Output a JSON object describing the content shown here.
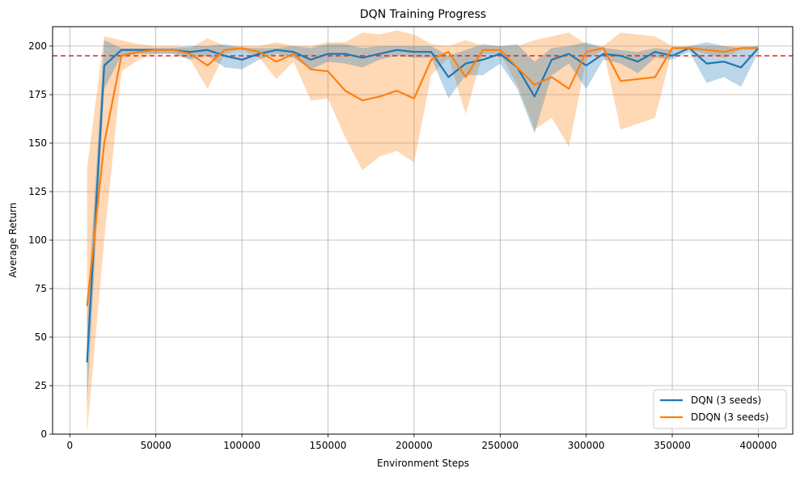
{
  "chart_data": {
    "type": "line",
    "title": "DQN Training Progress",
    "xlabel": "Environment Steps",
    "ylabel": "Average Return",
    "xlim": [
      -10000,
      420000
    ],
    "ylim": [
      0,
      210
    ],
    "xticks": [
      0,
      50000,
      100000,
      150000,
      200000,
      250000,
      300000,
      350000,
      400000
    ],
    "xtick_labels": [
      "0",
      "50000",
      "100000",
      "150000",
      "200000",
      "250000",
      "300000",
      "350000",
      "400000"
    ],
    "yticks": [
      0,
      25,
      50,
      75,
      100,
      125,
      150,
      175,
      200
    ],
    "ytick_labels": [
      "0",
      "25",
      "50",
      "75",
      "100",
      "125",
      "150",
      "175",
      "200"
    ],
    "grid": true,
    "legend_position": "lower-right",
    "reference_line": {
      "y": 195,
      "color": "#d62728",
      "style": "dashed"
    },
    "x": [
      10000,
      20000,
      30000,
      40000,
      50000,
      60000,
      70000,
      80000,
      90000,
      100000,
      110000,
      120000,
      130000,
      140000,
      150000,
      160000,
      170000,
      180000,
      190000,
      200000,
      210000,
      220000,
      230000,
      240000,
      250000,
      260000,
      270000,
      280000,
      290000,
      300000,
      310000,
      320000,
      330000,
      340000,
      350000,
      360000,
      370000,
      380000,
      390000,
      400000
    ],
    "series": [
      {
        "name": "DQN (3 seeds)",
        "color": "#1f77b4",
        "values": [
          37,
          190,
          198,
          198,
          198,
          198,
          197,
          198,
          195,
          193,
          196,
          198,
          197,
          193,
          196,
          196,
          194,
          196,
          198,
          197,
          197,
          184,
          191,
          193,
          196,
          189,
          174,
          193,
          196,
          190,
          196,
          195,
          192,
          197,
          195,
          199,
          191,
          192,
          189,
          199
        ],
        "upper": [
          60,
          203,
          199,
          199,
          199,
          199,
          200,
          200,
          201,
          199,
          199,
          199,
          200,
          199,
          201,
          201,
          199,
          200,
          200,
          200,
          200,
          195,
          198,
          201,
          200,
          201,
          192,
          199,
          200,
          202,
          199,
          198,
          197,
          199,
          198,
          200,
          202,
          200,
          199,
          200
        ],
        "lower": [
          15,
          178,
          195,
          196,
          196,
          196,
          193,
          195,
          189,
          188,
          193,
          196,
          194,
          188,
          192,
          191,
          189,
          193,
          195,
          194,
          194,
          173,
          185,
          185,
          191,
          178,
          155,
          185,
          191,
          178,
          193,
          191,
          186,
          194,
          193,
          197,
          181,
          184,
          179,
          197
        ]
      },
      {
        "name": "DDQN (3 seeds)",
        "color": "#ff7f0e",
        "values": [
          66,
          150,
          195,
          197,
          198,
          198,
          196,
          190,
          198,
          199,
          197,
          192,
          196,
          188,
          187,
          177,
          172,
          174,
          177,
          173,
          193,
          197,
          184,
          198,
          198,
          189,
          180,
          184,
          178,
          197,
          199,
          182,
          183,
          184,
          199,
          199,
          198,
          197,
          199,
          199
        ],
        "upper": [
          137,
          205,
          203,
          201,
          200,
          200,
          199,
          204,
          200,
          200,
          200,
          202,
          200,
          200,
          202,
          202,
          207,
          206,
          208,
          206,
          201,
          200,
          203,
          200,
          200,
          200,
          203,
          205,
          207,
          201,
          200,
          207,
          206,
          205,
          200,
          200,
          200,
          200,
          200,
          200
        ],
        "lower": [
          0,
          100,
          187,
          193,
          196,
          196,
          193,
          178,
          196,
          198,
          194,
          183,
          192,
          172,
          173,
          153,
          136,
          143,
          146,
          140,
          185,
          194,
          165,
          196,
          196,
          180,
          157,
          163,
          148,
          193,
          198,
          157,
          160,
          163,
          198,
          198,
          196,
          194,
          198,
          198
        ]
      }
    ]
  }
}
